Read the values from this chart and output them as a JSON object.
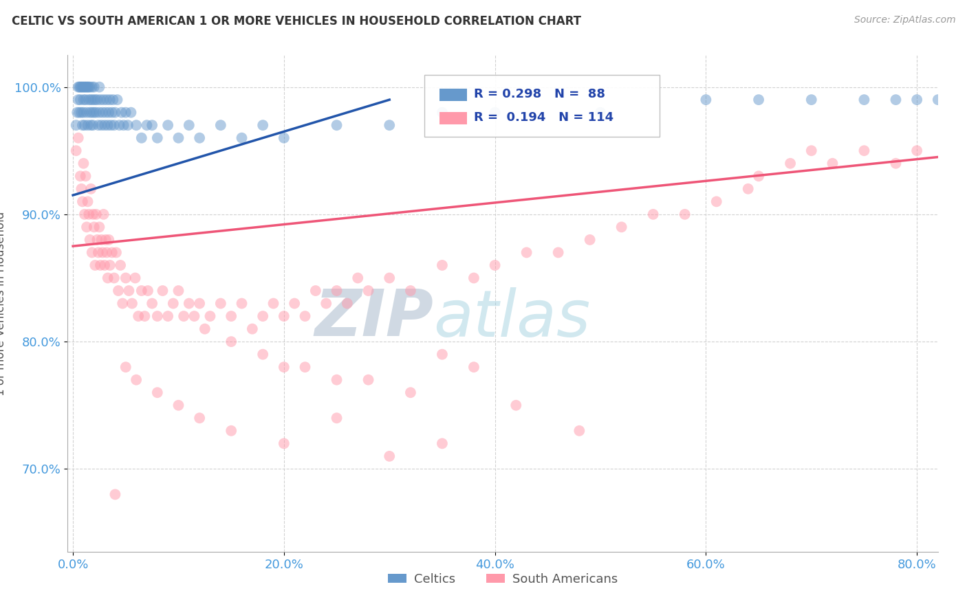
{
  "title": "CELTIC VS SOUTH AMERICAN 1 OR MORE VEHICLES IN HOUSEHOLD CORRELATION CHART",
  "source_text": "Source: ZipAtlas.com",
  "ylabel": "1 or more Vehicles in Household",
  "xticklabels": [
    "0.0%",
    "20.0%",
    "40.0%",
    "60.0%",
    "80.0%"
  ],
  "yticklabels": [
    "70.0%",
    "80.0%",
    "90.0%",
    "100.0%"
  ],
  "xlim": [
    -0.005,
    0.82
  ],
  "ylim": [
    0.635,
    1.025
  ],
  "legend_blue": "R = 0.298   N =  88",
  "legend_pink": "R =  0.194   N = 114",
  "blue_color": "#6699CC",
  "pink_color": "#FF99AA",
  "trendline_blue": "#2255AA",
  "trendline_pink": "#EE5577",
  "gridline_color": "#CCCCCC",
  "watermark_zip": "ZIP",
  "watermark_atlas": "atlas",
  "watermark_color_zip": "#AABBCC",
  "watermark_color_atlas": "#AACCDD",
  "blue_x": [
    0.003,
    0.004,
    0.005,
    0.005,
    0.006,
    0.006,
    0.007,
    0.007,
    0.008,
    0.008,
    0.009,
    0.009,
    0.01,
    0.01,
    0.01,
    0.011,
    0.011,
    0.012,
    0.012,
    0.013,
    0.013,
    0.014,
    0.014,
    0.015,
    0.015,
    0.016,
    0.016,
    0.017,
    0.017,
    0.018,
    0.018,
    0.019,
    0.019,
    0.02,
    0.02,
    0.021,
    0.022,
    0.023,
    0.024,
    0.025,
    0.025,
    0.026,
    0.027,
    0.028,
    0.029,
    0.03,
    0.031,
    0.032,
    0.033,
    0.034,
    0.035,
    0.036,
    0.037,
    0.038,
    0.039,
    0.04,
    0.042,
    0.044,
    0.046,
    0.048,
    0.05,
    0.052,
    0.055,
    0.06,
    0.065,
    0.07,
    0.075,
    0.08,
    0.09,
    0.1,
    0.11,
    0.12,
    0.14,
    0.16,
    0.18,
    0.2,
    0.25,
    0.3,
    0.35,
    0.4,
    0.5,
    0.6,
    0.65,
    0.7,
    0.75,
    0.78,
    0.8,
    0.82
  ],
  "blue_y": [
    0.97,
    0.98,
    1.0,
    0.99,
    1.0,
    0.98,
    1.0,
    0.99,
    1.0,
    0.98,
    1.0,
    0.97,
    1.0,
    0.99,
    0.98,
    1.0,
    0.97,
    1.0,
    0.99,
    1.0,
    0.98,
    1.0,
    0.97,
    1.0,
    0.99,
    1.0,
    0.98,
    0.99,
    0.97,
    1.0,
    0.98,
    0.99,
    0.97,
    1.0,
    0.98,
    0.99,
    0.98,
    0.99,
    0.97,
    1.0,
    0.98,
    0.99,
    0.97,
    0.98,
    0.99,
    0.97,
    0.98,
    0.99,
    0.97,
    0.98,
    0.99,
    0.97,
    0.98,
    0.99,
    0.97,
    0.98,
    0.99,
    0.97,
    0.98,
    0.97,
    0.98,
    0.97,
    0.98,
    0.97,
    0.96,
    0.97,
    0.97,
    0.96,
    0.97,
    0.96,
    0.97,
    0.96,
    0.97,
    0.96,
    0.97,
    0.96,
    0.97,
    0.97,
    0.98,
    0.98,
    0.98,
    0.99,
    0.99,
    0.99,
    0.99,
    0.99,
    0.99,
    0.99
  ],
  "pink_x": [
    0.003,
    0.005,
    0.007,
    0.008,
    0.009,
    0.01,
    0.011,
    0.012,
    0.013,
    0.014,
    0.015,
    0.016,
    0.017,
    0.018,
    0.019,
    0.02,
    0.021,
    0.022,
    0.023,
    0.024,
    0.025,
    0.026,
    0.027,
    0.028,
    0.029,
    0.03,
    0.031,
    0.032,
    0.033,
    0.034,
    0.035,
    0.037,
    0.039,
    0.041,
    0.043,
    0.045,
    0.047,
    0.05,
    0.053,
    0.056,
    0.059,
    0.062,
    0.065,
    0.068,
    0.071,
    0.075,
    0.08,
    0.085,
    0.09,
    0.095,
    0.1,
    0.105,
    0.11,
    0.115,
    0.12,
    0.125,
    0.13,
    0.14,
    0.15,
    0.16,
    0.17,
    0.18,
    0.19,
    0.2,
    0.21,
    0.22,
    0.23,
    0.24,
    0.25,
    0.26,
    0.27,
    0.28,
    0.3,
    0.32,
    0.35,
    0.38,
    0.4,
    0.43,
    0.46,
    0.49,
    0.52,
    0.55,
    0.58,
    0.61,
    0.64,
    0.65,
    0.68,
    0.7,
    0.72,
    0.75,
    0.78,
    0.8,
    0.35,
    0.38,
    0.2,
    0.25,
    0.15,
    0.18,
    0.22,
    0.28,
    0.32,
    0.42,
    0.48,
    0.35,
    0.3,
    0.25,
    0.2,
    0.15,
    0.1,
    0.12,
    0.08,
    0.06,
    0.05,
    0.04
  ],
  "pink_y": [
    0.95,
    0.96,
    0.93,
    0.92,
    0.91,
    0.94,
    0.9,
    0.93,
    0.89,
    0.91,
    0.9,
    0.88,
    0.92,
    0.87,
    0.9,
    0.89,
    0.86,
    0.9,
    0.88,
    0.87,
    0.89,
    0.86,
    0.88,
    0.87,
    0.9,
    0.86,
    0.88,
    0.87,
    0.85,
    0.88,
    0.86,
    0.87,
    0.85,
    0.87,
    0.84,
    0.86,
    0.83,
    0.85,
    0.84,
    0.83,
    0.85,
    0.82,
    0.84,
    0.82,
    0.84,
    0.83,
    0.82,
    0.84,
    0.82,
    0.83,
    0.84,
    0.82,
    0.83,
    0.82,
    0.83,
    0.81,
    0.82,
    0.83,
    0.82,
    0.83,
    0.81,
    0.82,
    0.83,
    0.82,
    0.83,
    0.82,
    0.84,
    0.83,
    0.84,
    0.83,
    0.85,
    0.84,
    0.85,
    0.84,
    0.86,
    0.85,
    0.86,
    0.87,
    0.87,
    0.88,
    0.89,
    0.9,
    0.9,
    0.91,
    0.92,
    0.93,
    0.94,
    0.95,
    0.94,
    0.95,
    0.94,
    0.95,
    0.79,
    0.78,
    0.78,
    0.77,
    0.8,
    0.79,
    0.78,
    0.77,
    0.76,
    0.75,
    0.73,
    0.72,
    0.71,
    0.74,
    0.72,
    0.73,
    0.75,
    0.74,
    0.76,
    0.77,
    0.78,
    0.68
  ]
}
